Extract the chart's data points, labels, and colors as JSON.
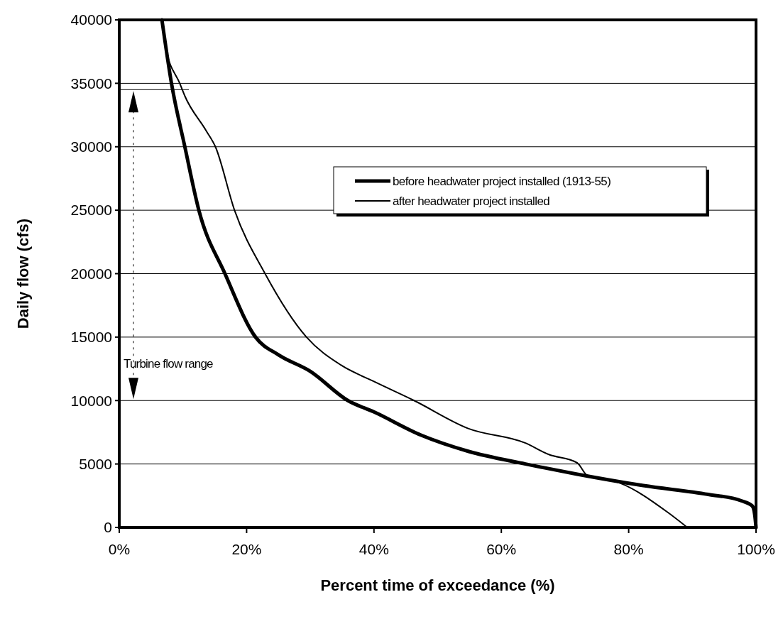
{
  "chart_data": {
    "type": "line",
    "xlabel": "Percent time of exceedance (%)",
    "ylabel": "Daily flow  (cfs)",
    "series": [
      {
        "name": "before headwater project installed (1913-55)",
        "color": "#000000",
        "x": [
          6.7,
          8.2,
          10.3,
          12.5,
          16.6,
          21.4,
          25,
          30,
          35.9,
          40,
          47.4,
          54.8,
          63.8,
          71.9,
          82.3,
          92.5,
          97.7,
          99.4,
          99.8,
          100
        ],
        "values": [
          40000,
          35000,
          30000,
          25000,
          20000,
          15000,
          13600,
          12300,
          10000,
          9100,
          7270,
          6000,
          5000,
          4200,
          3300,
          2600,
          2100,
          1700,
          1000,
          0
        ]
      },
      {
        "name": "after headwater project installed",
        "color": "#000000",
        "x": [
          6.7,
          7.3,
          9.5,
          10.3,
          13.6,
          15.1,
          18.1,
          22.9,
          29.4,
          34.8,
          40,
          46.3,
          54.8,
          63.8,
          67.4,
          71.9,
          73.5,
          78.6,
          86.1,
          89.2
        ],
        "values": [
          40000,
          37800,
          35000,
          34000,
          31300,
          30000,
          25000,
          20000,
          15000,
          12800,
          11500,
          10000,
          7800,
          6650,
          5760,
          5100,
          4100,
          3500,
          1200,
          0
        ]
      }
    ],
    "xlim": [
      0,
      100
    ],
    "ylim": [
      0,
      40000
    ],
    "xticks": [
      {
        "value": 0,
        "label": "0%"
      },
      {
        "value": 20,
        "label": "20%"
      },
      {
        "value": 40,
        "label": "40%"
      },
      {
        "value": 60,
        "label": "60%"
      },
      {
        "value": 80,
        "label": "80%"
      },
      {
        "value": 100,
        "label": "100%"
      }
    ],
    "yticks": [
      0,
      5000,
      10000,
      15000,
      20000,
      25000,
      30000,
      35000,
      40000
    ],
    "ref_lines": [
      {
        "axis": "y",
        "value": 34500
      }
    ],
    "annotations": [
      "Turbine flow range"
    ],
    "grid": "y",
    "legend": "top right"
  }
}
